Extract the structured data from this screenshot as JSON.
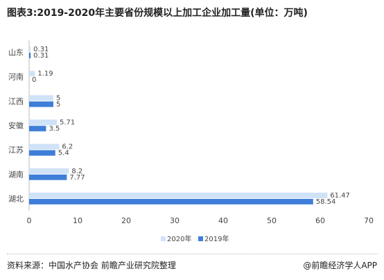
{
  "title": "图表3:2019-2020年主要省份规模以上加工企业加工量(单位：万吨)",
  "source": "资料来源：中国水产协会 前瞻产业研究院整理",
  "brand": "@前瞻经济学人APP",
  "colors": {
    "series_2020": "#cfe2f8",
    "series_2019": "#3f7ed8",
    "axis": "#bbbbbb",
    "text": "#444444"
  },
  "chart_data": {
    "type": "bar",
    "orientation": "horizontal",
    "title": "图表3:2019-2020年主要省份规模以上加工企业加工量(单位：万吨)",
    "categories": [
      "山东",
      "河南",
      "江西",
      "安徽",
      "江苏",
      "湖南",
      "湖北"
    ],
    "series": [
      {
        "name": "2020年",
        "values": [
          0.31,
          1.19,
          5,
          5.71,
          6.2,
          8.2,
          61.47
        ]
      },
      {
        "name": "2019年",
        "values": [
          0.31,
          0,
          5,
          3.5,
          5.4,
          7.77,
          58.54
        ]
      }
    ],
    "data_labels": [
      [
        "0.31",
        "1.19",
        "5",
        "5.71",
        "6.2",
        "8.2",
        "61.47"
      ],
      [
        "0.31",
        "0",
        "5",
        "3.5",
        "5.4",
        "7.77",
        "58.54"
      ]
    ],
    "xlim": [
      0,
      70
    ],
    "xticks": [
      0,
      10,
      20,
      30,
      40,
      50,
      60,
      70
    ],
    "xlabel": "",
    "ylabel": "",
    "grid": false,
    "legend_position": "bottom-center"
  }
}
